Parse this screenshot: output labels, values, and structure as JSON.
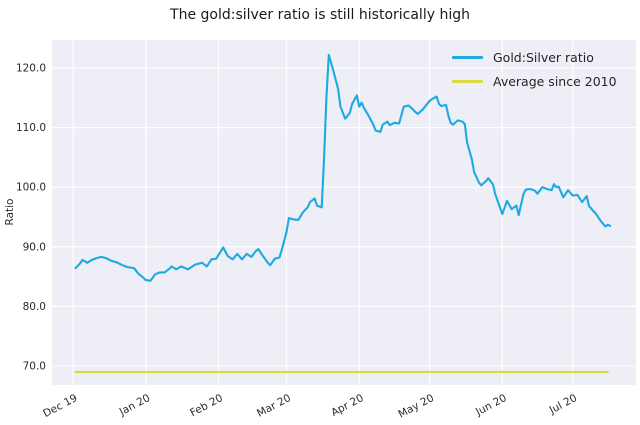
{
  "chart_data": {
    "type": "line",
    "title": "The gold:silver ratio is still historically high",
    "ylabel": "Ratio",
    "xlabel": "",
    "grid": true,
    "legend_position": "upper right",
    "plot_bg_color": "#eeeef6",
    "grid_color": "#ffffff",
    "tick_label_color": "#2b2b2b",
    "xlim": [
      "2019-11-22",
      "2020-07-28"
    ],
    "ylim": [
      66.8,
      124.7
    ],
    "x_ticks": [
      {
        "date": "2019-12-01",
        "label": "Dec 19"
      },
      {
        "date": "2020-01-01",
        "label": "Jan 20"
      },
      {
        "date": "2020-02-01",
        "label": "Feb 20"
      },
      {
        "date": "2020-03-01",
        "label": "Mar 20"
      },
      {
        "date": "2020-04-01",
        "label": "Apr 20"
      },
      {
        "date": "2020-05-01",
        "label": "May 20"
      },
      {
        "date": "2020-06-01",
        "label": "Jun 20"
      },
      {
        "date": "2020-07-01",
        "label": "Jul 20"
      }
    ],
    "y_ticks": [
      {
        "value": 70,
        "label": "70.0"
      },
      {
        "value": 80,
        "label": "80.0"
      },
      {
        "value": 90,
        "label": "90.0"
      },
      {
        "value": 100,
        "label": "100.0"
      },
      {
        "value": 110,
        "label": "110.0"
      },
      {
        "value": 120,
        "label": "120.0"
      }
    ],
    "series": [
      {
        "name": "Gold:Silver ratio",
        "color": "#1ea9e0",
        "points": [
          [
            "2019-12-02",
            86.4
          ],
          [
            "2019-12-04",
            87.2
          ],
          [
            "2019-12-05",
            87.8
          ],
          [
            "2019-12-07",
            87.3
          ],
          [
            "2019-12-09",
            87.8
          ],
          [
            "2019-12-11",
            88.1
          ],
          [
            "2019-12-13",
            88.3
          ],
          [
            "2019-12-15",
            88.1
          ],
          [
            "2019-12-17",
            87.7
          ],
          [
            "2019-12-20",
            87.3
          ],
          [
            "2019-12-22",
            86.9
          ],
          [
            "2019-12-24",
            86.6
          ],
          [
            "2019-12-27",
            86.4
          ],
          [
            "2019-12-29",
            85.4
          ],
          [
            "2019-12-31",
            84.8
          ],
          [
            "2020-01-01",
            84.4
          ],
          [
            "2020-01-03",
            84.3
          ],
          [
            "2020-01-05",
            85.4
          ],
          [
            "2020-01-07",
            85.7
          ],
          [
            "2020-01-09",
            85.7
          ],
          [
            "2020-01-11",
            86.3
          ],
          [
            "2020-01-12",
            86.7
          ],
          [
            "2020-01-14",
            86.2
          ],
          [
            "2020-01-16",
            86.7
          ],
          [
            "2020-01-19",
            86.2
          ],
          [
            "2020-01-22",
            87.0
          ],
          [
            "2020-01-25",
            87.3
          ],
          [
            "2020-01-27",
            86.7
          ],
          [
            "2020-01-29",
            87.9
          ],
          [
            "2020-01-31",
            88.0
          ],
          [
            "2020-02-03",
            89.9
          ],
          [
            "2020-02-05",
            88.4
          ],
          [
            "2020-02-07",
            87.9
          ],
          [
            "2020-02-09",
            88.8
          ],
          [
            "2020-02-11",
            87.9
          ],
          [
            "2020-02-13",
            88.8
          ],
          [
            "2020-02-15",
            88.3
          ],
          [
            "2020-02-17",
            89.3
          ],
          [
            "2020-02-18",
            89.6
          ],
          [
            "2020-02-20",
            88.4
          ],
          [
            "2020-02-22",
            87.3
          ],
          [
            "2020-02-23",
            86.9
          ],
          [
            "2020-02-25",
            88.0
          ],
          [
            "2020-02-27",
            88.2
          ],
          [
            "2020-02-28",
            89.5
          ],
          [
            "2020-02-29",
            91.0
          ],
          [
            "2020-03-01",
            92.5
          ],
          [
            "2020-03-02",
            94.8
          ],
          [
            "2020-03-04",
            94.6
          ],
          [
            "2020-03-06",
            94.5
          ],
          [
            "2020-03-08",
            95.8
          ],
          [
            "2020-03-10",
            96.6
          ],
          [
            "2020-03-11",
            97.5
          ],
          [
            "2020-03-13",
            98.1
          ],
          [
            "2020-03-14",
            96.9
          ],
          [
            "2020-03-16",
            96.6
          ],
          [
            "2020-03-17",
            105.0
          ],
          [
            "2020-03-18",
            115.0
          ],
          [
            "2020-03-19",
            122.2
          ],
          [
            "2020-03-21",
            119.5
          ],
          [
            "2020-03-23",
            116.5
          ],
          [
            "2020-03-24",
            113.5
          ],
          [
            "2020-03-26",
            111.5
          ],
          [
            "2020-03-28",
            112.5
          ],
          [
            "2020-03-29",
            114.0
          ],
          [
            "2020-03-31",
            115.4
          ],
          [
            "2020-04-01",
            113.5
          ],
          [
            "2020-04-02",
            114.2
          ],
          [
            "2020-04-03",
            113.3
          ],
          [
            "2020-04-05",
            112.0
          ],
          [
            "2020-04-07",
            110.5
          ],
          [
            "2020-04-08",
            109.5
          ],
          [
            "2020-04-10",
            109.3
          ],
          [
            "2020-04-11",
            110.5
          ],
          [
            "2020-04-13",
            111.0
          ],
          [
            "2020-04-14",
            110.4
          ],
          [
            "2020-04-16",
            110.8
          ],
          [
            "2020-04-18",
            110.7
          ],
          [
            "2020-04-20",
            113.5
          ],
          [
            "2020-04-22",
            113.7
          ],
          [
            "2020-04-23",
            113.4
          ],
          [
            "2020-04-25",
            112.6
          ],
          [
            "2020-04-26",
            112.3
          ],
          [
            "2020-04-28",
            113.0
          ],
          [
            "2020-04-30",
            114.0
          ],
          [
            "2020-05-01",
            114.5
          ],
          [
            "2020-05-03",
            115.0
          ],
          [
            "2020-05-04",
            115.2
          ],
          [
            "2020-05-05",
            114.0
          ],
          [
            "2020-05-06",
            113.6
          ],
          [
            "2020-05-08",
            113.8
          ],
          [
            "2020-05-09",
            112.0
          ],
          [
            "2020-05-10",
            110.8
          ],
          [
            "2020-05-11",
            110.5
          ],
          [
            "2020-05-13",
            111.2
          ],
          [
            "2020-05-15",
            111.0
          ],
          [
            "2020-05-16",
            110.6
          ],
          [
            "2020-05-17",
            107.5
          ],
          [
            "2020-05-19",
            104.7
          ],
          [
            "2020-05-20",
            102.5
          ],
          [
            "2020-05-22",
            100.8
          ],
          [
            "2020-05-23",
            100.3
          ],
          [
            "2020-05-25",
            101.0
          ],
          [
            "2020-05-26",
            101.5
          ],
          [
            "2020-05-28",
            100.5
          ],
          [
            "2020-05-29",
            98.8
          ],
          [
            "2020-06-01",
            95.5
          ],
          [
            "2020-06-03",
            97.7
          ],
          [
            "2020-06-05",
            96.3
          ],
          [
            "2020-06-07",
            96.9
          ],
          [
            "2020-06-08",
            95.3
          ],
          [
            "2020-06-10",
            98.8
          ],
          [
            "2020-06-11",
            99.6
          ],
          [
            "2020-06-13",
            99.7
          ],
          [
            "2020-06-15",
            99.4
          ],
          [
            "2020-06-16",
            98.9
          ],
          [
            "2020-06-18",
            100.0
          ],
          [
            "2020-06-20",
            99.7
          ],
          [
            "2020-06-22",
            99.5
          ],
          [
            "2020-06-23",
            100.5
          ],
          [
            "2020-06-24",
            100.0
          ],
          [
            "2020-06-25",
            100.1
          ],
          [
            "2020-06-27",
            98.3
          ],
          [
            "2020-06-29",
            99.5
          ],
          [
            "2020-07-01",
            98.6
          ],
          [
            "2020-07-03",
            98.7
          ],
          [
            "2020-07-05",
            97.5
          ],
          [
            "2020-07-07",
            98.5
          ],
          [
            "2020-07-08",
            96.8
          ],
          [
            "2020-07-11",
            95.5
          ],
          [
            "2020-07-13",
            94.3
          ],
          [
            "2020-07-15",
            93.4
          ],
          [
            "2020-07-16",
            93.7
          ],
          [
            "2020-07-17",
            93.5
          ]
        ]
      },
      {
        "name": "Average since 2010",
        "color": "#d9dc3c",
        "average_value": 69,
        "points": [
          [
            "2019-12-02",
            69
          ],
          [
            "2020-07-16",
            69
          ]
        ]
      }
    ]
  }
}
